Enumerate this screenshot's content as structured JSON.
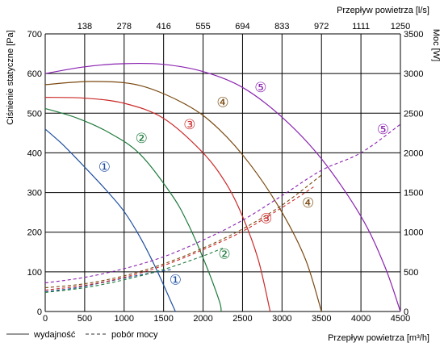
{
  "chart_data": {
    "type": "line",
    "xlabel_bottom": "Przepływ powietrza [m³/h]",
    "xlabel_top": "Przepływ powietrza [l/s]",
    "ylabel_left": "Ciśnienie statyczne [Pa]",
    "ylabel_right": "Moc [W]",
    "xlim": [
      0,
      4500
    ],
    "ylim_left": [
      0,
      700
    ],
    "ylim_right": [
      0,
      3500
    ],
    "x_ticks_bottom": [
      "0",
      "500",
      "1000",
      "1500",
      "2000",
      "2500",
      "3000",
      "3500",
      "4000",
      "4500"
    ],
    "x_ticks_top": [
      "138",
      "278",
      "416",
      "555",
      "694",
      "833",
      "972",
      "1111",
      "1250"
    ],
    "y_ticks_left": [
      "0",
      "100",
      "200",
      "300",
      "400",
      "500",
      "600",
      "700"
    ],
    "y_ticks_right": [
      "0",
      "500",
      "1000",
      "1500",
      "2000",
      "2500",
      "3000",
      "3500"
    ],
    "grid": true,
    "legend": {
      "position": "bottom-left",
      "solid_label": "wydajność",
      "dashed_label": "pobór mocy"
    },
    "series": [
      {
        "name": "①",
        "color": "#1f4fa0",
        "pressure": {
          "x": [
            0,
            200,
            400,
            600,
            800,
            1000,
            1200,
            1400,
            1600,
            1650
          ],
          "y": [
            460,
            425,
            385,
            343,
            300,
            252,
            188,
            110,
            22,
            0
          ]
        },
        "power": {
          "x": [
            0,
            400,
            800,
            1200,
            1600
          ],
          "y": [
            250,
            300,
            380,
            460,
            530
          ]
        },
        "label_pressure_pos": [
          750,
          365
        ],
        "label_power_pos": [
          1650,
          80
        ]
      },
      {
        "name": "②",
        "color": "#1e7a3c",
        "pressure": {
          "x": [
            0,
            400,
            800,
            1200,
            1600,
            1800,
            2000,
            2200,
            2230
          ],
          "y": [
            512,
            488,
            452,
            397,
            295,
            225,
            135,
            30,
            0
          ]
        },
        "power": {
          "x": [
            0,
            500,
            1000,
            1500,
            2000,
            2250
          ],
          "y": [
            240,
            300,
            400,
            530,
            700,
            800
          ]
        },
        "label_pressure_pos": [
          1220,
          437
        ],
        "label_power_pos": [
          2270,
          145
        ]
      },
      {
        "name": "③",
        "color": "#cc2a2a",
        "pressure": {
          "x": [
            0,
            500,
            1000,
            1500,
            2000,
            2300,
            2500,
            2700,
            2850
          ],
          "y": [
            540,
            538,
            525,
            487,
            400,
            320,
            240,
            130,
            0
          ]
        },
        "power": {
          "x": [
            0,
            500,
            1000,
            1500,
            2000,
            2500,
            3000,
            3400
          ],
          "y": [
            270,
            330,
            430,
            580,
            780,
            1010,
            1310,
            1570
          ]
        },
        "label_pressure_pos": [
          1830,
          472
        ],
        "label_power_pos": [
          2800,
          235
        ]
      },
      {
        "name": "④",
        "color": "#7a4a10",
        "pressure": {
          "x": [
            0,
            600,
            1200,
            1800,
            2200,
            2600,
            3000,
            3300,
            3500
          ],
          "y": [
            572,
            580,
            570,
            520,
            460,
            370,
            250,
            130,
            0
          ]
        },
        "power": {
          "x": [
            0,
            500,
            1000,
            1500,
            2000,
            2500,
            3000,
            3500
          ],
          "y": [
            300,
            350,
            450,
            600,
            800,
            1040,
            1340,
            1720
          ]
        },
        "label_pressure_pos": [
          2250,
          528
        ],
        "label_power_pos": [
          3330,
          275
        ]
      },
      {
        "name": "⑤",
        "color": "#8a22b0",
        "pressure": {
          "x": [
            0,
            500,
            1000,
            1500,
            2000,
            2500,
            3000,
            3500,
            4000,
            4300,
            4500
          ],
          "y": [
            600,
            617,
            625,
            623,
            605,
            565,
            490,
            385,
            240,
            115,
            0
          ]
        },
        "power": {
          "x": [
            0,
            500,
            1000,
            1500,
            2000,
            2500,
            3000,
            3500,
            4000,
            4500
          ],
          "y": [
            360,
            430,
            540,
            690,
            900,
            1150,
            1460,
            1780,
            2000,
            2360
          ]
        },
        "label_pressure_pos": [
          2730,
          566
        ],
        "label_power_pos": [
          4280,
          460
        ]
      }
    ]
  }
}
